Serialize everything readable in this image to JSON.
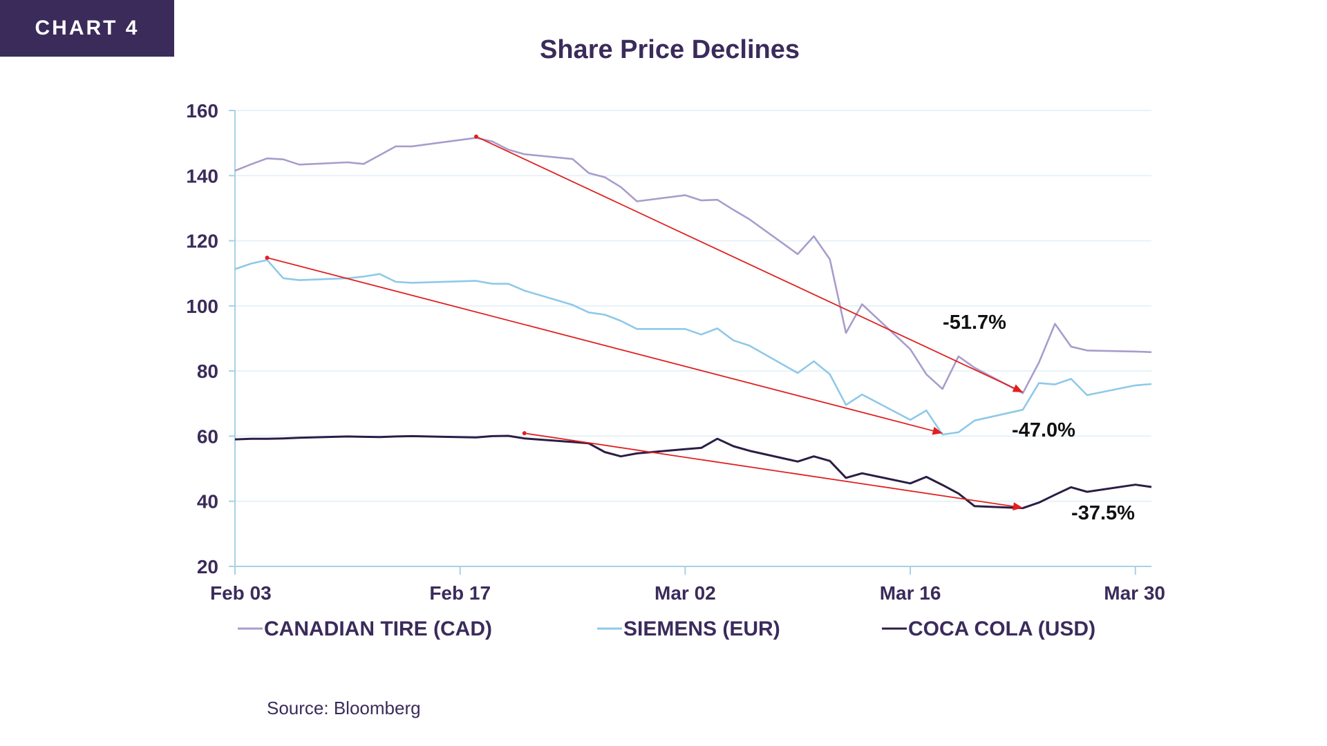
{
  "badge": "CHART 4",
  "source": "Source: Bloomberg",
  "colors": {
    "badge_bg": "#3b2b5b",
    "text": "#3b2b5b",
    "axis": "#a8d0e6",
    "grid": "#e6f2f8",
    "trend": "#e02020"
  },
  "chart_data": {
    "type": "line",
    "title": "Share Price Declines",
    "xlabel": "",
    "ylabel": "",
    "ylim": [
      20,
      160
    ],
    "yticks": [
      "20",
      "40",
      "60",
      "80",
      "100",
      "120",
      "140",
      "160"
    ],
    "xticks": [
      "Feb 03",
      "Feb 17",
      "Mar 02",
      "Mar 16",
      "Mar 30"
    ],
    "xlim": [
      "2020-02-03",
      "2020-03-31"
    ],
    "grid": true,
    "legend_position": "bottom",
    "x": [
      "2020-02-03",
      "2020-02-04",
      "2020-02-05",
      "2020-02-06",
      "2020-02-07",
      "2020-02-10",
      "2020-02-11",
      "2020-02-12",
      "2020-02-13",
      "2020-02-14",
      "2020-02-18",
      "2020-02-19",
      "2020-02-20",
      "2020-02-21",
      "2020-02-24",
      "2020-02-25",
      "2020-02-26",
      "2020-02-27",
      "2020-02-28",
      "2020-03-02",
      "2020-03-03",
      "2020-03-04",
      "2020-03-05",
      "2020-03-06",
      "2020-03-09",
      "2020-03-10",
      "2020-03-11",
      "2020-03-12",
      "2020-03-13",
      "2020-03-16",
      "2020-03-17",
      "2020-03-18",
      "2020-03-19",
      "2020-03-20",
      "2020-03-23",
      "2020-03-24",
      "2020-03-25",
      "2020-03-26",
      "2020-03-27",
      "2020-03-30",
      "2020-03-31"
    ],
    "series": [
      {
        "name": "CANADIAN TIRE (CAD)",
        "color": "#a99ccb",
        "values": [
          141.5,
          143.5,
          145.3,
          145.0,
          143.4,
          144.1,
          143.6,
          146.3,
          149.0,
          149.0,
          151.6,
          150.5,
          148.0,
          146.6,
          145.1,
          140.8,
          139.5,
          136.5,
          132.1,
          134.0,
          132.4,
          132.6,
          129.5,
          126.6,
          115.9,
          121.4,
          114.3,
          91.7,
          100.5,
          86.7,
          79.0,
          74.5,
          84.5,
          81.0,
          73.2,
          82.6,
          94.5,
          87.5,
          86.3,
          86.0,
          85.8
        ]
      },
      {
        "name": "SIEMENS (EUR)",
        "color": "#8ec9e8",
        "values": [
          111.3,
          113.0,
          114.1,
          108.5,
          107.9,
          108.5,
          109.0,
          109.8,
          107.4,
          107.1,
          107.7,
          106.8,
          106.8,
          104.7,
          100.3,
          98.0,
          97.3,
          95.4,
          92.9,
          92.9,
          91.2,
          93.1,
          89.4,
          87.8,
          79.4,
          83.0,
          79.0,
          69.6,
          72.8,
          65.0,
          67.9,
          60.5,
          61.2,
          64.8,
          68.1,
          76.3,
          75.9,
          77.6,
          72.6,
          75.6,
          76.0
        ]
      },
      {
        "name": "COCA COLA (USD)",
        "color": "#2b1d45",
        "values": [
          59.0,
          59.2,
          59.2,
          59.3,
          59.5,
          59.9,
          59.8,
          59.7,
          59.9,
          60.0,
          59.6,
          60.0,
          60.1,
          59.3,
          58.2,
          57.8,
          55.1,
          53.8,
          54.7,
          56.0,
          56.4,
          59.2,
          56.9,
          55.5,
          52.2,
          53.8,
          52.4,
          47.2,
          48.6,
          45.5,
          47.5,
          45.0,
          42.4,
          38.5,
          37.9,
          39.6,
          42.0,
          44.3,
          42.9,
          45.1,
          44.4
        ]
      }
    ],
    "trendlines": [
      {
        "from_date": "2020-02-18",
        "from_value": 152.0,
        "to_date": "2020-03-23",
        "to_value": 73.5
      },
      {
        "from_date": "2020-02-05",
        "from_value": 114.8,
        "to_date": "2020-03-18",
        "to_value": 60.9
      },
      {
        "from_date": "2020-02-21",
        "from_value": 60.9,
        "to_date": "2020-03-23",
        "to_value": 38.0
      }
    ],
    "annotations": [
      {
        "text": "-51.7%"
      },
      {
        "text": "-47.0%"
      },
      {
        "text": "-37.5%"
      }
    ]
  }
}
